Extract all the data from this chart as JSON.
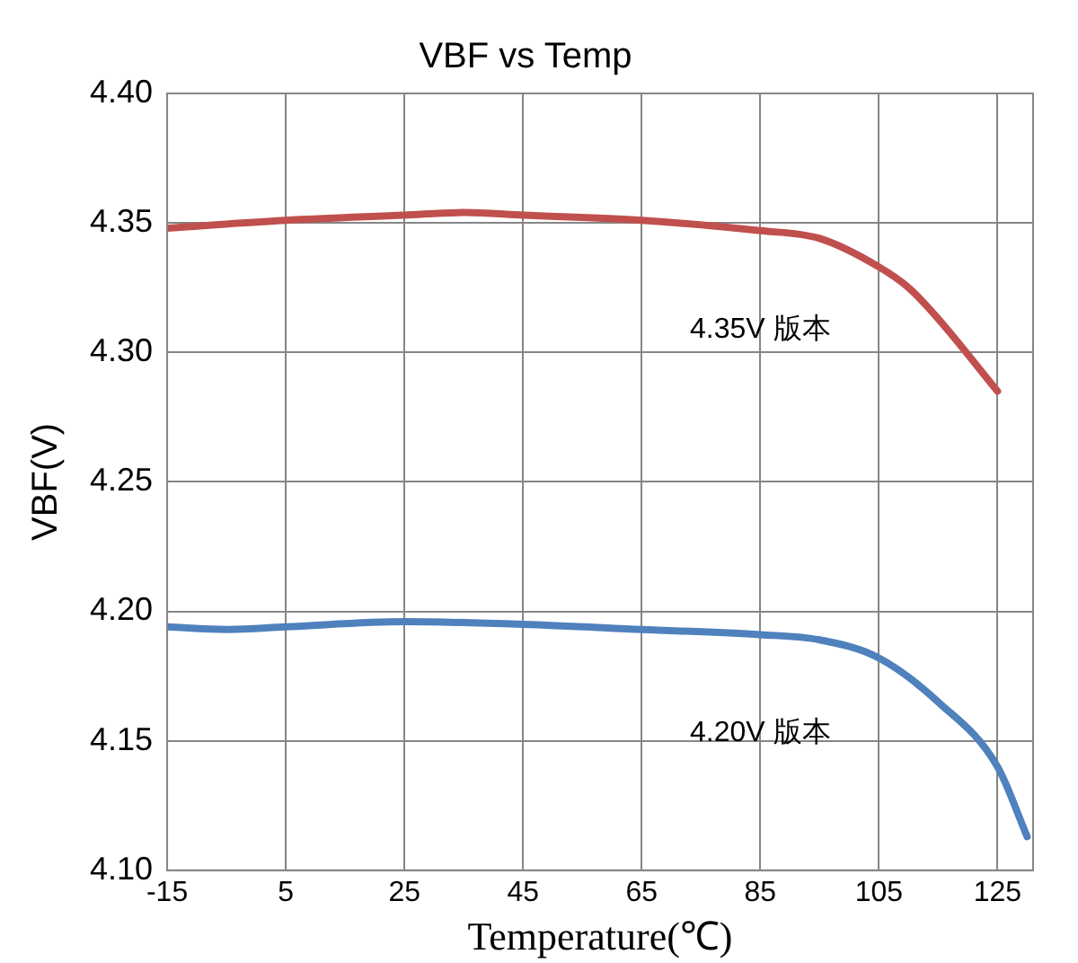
{
  "chart_data": {
    "type": "line",
    "title": "VBF vs Temp",
    "xlabel": "Temperature(℃)",
    "ylabel": "VBF(V)",
    "series": [
      {
        "name": "4.35V 版本",
        "color": "#c0504d",
        "x": [
          -15,
          5,
          25,
          35,
          45,
          65,
          85,
          95,
          105,
          110,
          115,
          125
        ],
        "values": [
          4.348,
          4.351,
          4.353,
          4.354,
          4.353,
          4.351,
          4.347,
          4.344,
          4.333,
          4.325,
          4.313,
          4.285
        ]
      },
      {
        "name": "4.20V 版本",
        "color": "#4f81bd",
        "x": [
          -15,
          -5,
          5,
          25,
          45,
          65,
          85,
          95,
          105,
          115,
          125,
          130
        ],
        "values": [
          4.194,
          4.193,
          4.194,
          4.196,
          4.195,
          4.193,
          4.191,
          4.189,
          4.182,
          4.165,
          4.14,
          4.113
        ]
      }
    ],
    "xlim": [
      -15,
      131
    ],
    "xticks": [
      -15,
      5,
      25,
      45,
      65,
      85,
      105,
      125
    ],
    "ylim": [
      4.1,
      4.4
    ],
    "yticks": [
      {
        "value": 4.1,
        "label": "4.10"
      },
      {
        "value": 4.15,
        "label": "4.15"
      },
      {
        "value": 4.2,
        "label": "4.20"
      },
      {
        "value": 4.25,
        "label": "4.25"
      },
      {
        "value": 4.3,
        "label": "4.30"
      },
      {
        "value": 4.35,
        "label": "4.35"
      },
      {
        "value": 4.4,
        "label": "4.40"
      }
    ],
    "grid": true,
    "legend": false,
    "marker": "none",
    "line_style": "solid"
  }
}
